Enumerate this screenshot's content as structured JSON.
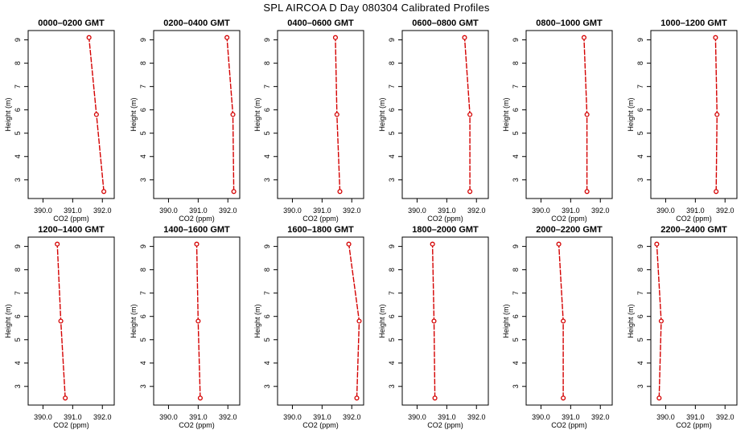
{
  "title": "SPL AIRCOA D  Day 080304  Calibrated Profiles",
  "colors": {
    "profile": "#d40000",
    "axis": "#000000"
  },
  "chart_data": [
    {
      "type": "line",
      "title": "0000–0200 GMT",
      "xlabel": "CO2 (ppm)",
      "ylabel": "Height (m)",
      "xlim": [
        389.5,
        392.4
      ],
      "ylim": [
        2.2,
        9.4
      ],
      "xticks": [
        "390.0",
        "391.0",
        "392.0"
      ],
      "yticks": [
        "3",
        "4",
        "5",
        "6",
        "7",
        "8",
        "9"
      ],
      "series": [
        {
          "x": [
            392.05,
            391.8,
            391.55
          ],
          "y": [
            2.5,
            5.8,
            9.1
          ]
        }
      ]
    },
    {
      "type": "line",
      "title": "0200–0400 GMT",
      "xlabel": "CO2 (ppm)",
      "ylabel": "Height (m)",
      "xlim": [
        389.5,
        392.4
      ],
      "ylim": [
        2.2,
        9.4
      ],
      "xticks": [
        "390.0",
        "391.0",
        "392.0"
      ],
      "yticks": [
        "3",
        "4",
        "5",
        "6",
        "7",
        "8",
        "9"
      ],
      "series": [
        {
          "x": [
            392.2,
            392.17,
            391.97
          ],
          "y": [
            2.5,
            5.8,
            9.1
          ]
        }
      ]
    },
    {
      "type": "line",
      "title": "0400–0600 GMT",
      "xlabel": "CO2 (ppm)",
      "ylabel": "Height (m)",
      "xlim": [
        389.5,
        392.4
      ],
      "ylim": [
        2.2,
        9.4
      ],
      "xticks": [
        "390.0",
        "391.0",
        "392.0"
      ],
      "yticks": [
        "3",
        "4",
        "5",
        "6",
        "7",
        "8",
        "9"
      ],
      "series": [
        {
          "x": [
            391.6,
            391.5,
            391.45
          ],
          "y": [
            2.5,
            5.8,
            9.1
          ]
        }
      ]
    },
    {
      "type": "line",
      "title": "0600–0800 GMT",
      "xlabel": "CO2 (ppm)",
      "ylabel": "Height (m)",
      "xlim": [
        389.5,
        392.4
      ],
      "ylim": [
        2.2,
        9.4
      ],
      "xticks": [
        "390.0",
        "391.0",
        "392.0"
      ],
      "yticks": [
        "3",
        "4",
        "5",
        "6",
        "7",
        "8",
        "9"
      ],
      "series": [
        {
          "x": [
            391.78,
            391.78,
            391.6
          ],
          "y": [
            2.5,
            5.8,
            9.1
          ]
        }
      ]
    },
    {
      "type": "line",
      "title": "0800–1000 GMT",
      "xlabel": "CO2 (ppm)",
      "ylabel": "Height (m)",
      "xlim": [
        389.5,
        392.4
      ],
      "ylim": [
        2.2,
        9.4
      ],
      "xticks": [
        "390.0",
        "391.0",
        "392.0"
      ],
      "yticks": [
        "3",
        "4",
        "5",
        "6",
        "7",
        "8",
        "9"
      ],
      "series": [
        {
          "x": [
            391.55,
            391.55,
            391.45
          ],
          "y": [
            2.5,
            5.8,
            9.1
          ]
        }
      ]
    },
    {
      "type": "line",
      "title": "1000–1200 GMT",
      "xlabel": "CO2 (ppm)",
      "ylabel": "Height (m)",
      "xlim": [
        389.5,
        392.4
      ],
      "ylim": [
        2.2,
        9.4
      ],
      "xticks": [
        "390.0",
        "391.0",
        "392.0"
      ],
      "yticks": [
        "3",
        "4",
        "5",
        "6",
        "7",
        "8",
        "9"
      ],
      "series": [
        {
          "x": [
            391.7,
            391.73,
            391.68
          ],
          "y": [
            2.5,
            5.8,
            9.1
          ]
        }
      ]
    },
    {
      "type": "line",
      "title": "1200–1400 GMT",
      "xlabel": "CO2 (ppm)",
      "ylabel": "Height (m)",
      "xlim": [
        389.5,
        392.4
      ],
      "ylim": [
        2.2,
        9.4
      ],
      "xticks": [
        "390.0",
        "391.0",
        "392.0"
      ],
      "yticks": [
        "3",
        "4",
        "5",
        "6",
        "7",
        "8",
        "9"
      ],
      "series": [
        {
          "x": [
            390.75,
            390.6,
            390.48
          ],
          "y": [
            2.5,
            5.8,
            9.1
          ]
        }
      ]
    },
    {
      "type": "line",
      "title": "1400–1600 GMT",
      "xlabel": "CO2 (ppm)",
      "ylabel": "Height (m)",
      "xlim": [
        389.5,
        392.4
      ],
      "ylim": [
        2.2,
        9.4
      ],
      "xticks": [
        "390.0",
        "391.0",
        "392.0"
      ],
      "yticks": [
        "3",
        "4",
        "5",
        "6",
        "7",
        "8",
        "9"
      ],
      "series": [
        {
          "x": [
            391.07,
            391.0,
            390.95
          ],
          "y": [
            2.5,
            5.8,
            9.1
          ]
        }
      ]
    },
    {
      "type": "line",
      "title": "1600–1800 GMT",
      "xlabel": "CO2 (ppm)",
      "ylabel": "Height (m)",
      "xlim": [
        389.5,
        392.4
      ],
      "ylim": [
        2.2,
        9.4
      ],
      "xticks": [
        "390.0",
        "391.0",
        "392.0"
      ],
      "yticks": [
        "3",
        "4",
        "5",
        "6",
        "7",
        "8",
        "9"
      ],
      "series": [
        {
          "x": [
            392.17,
            392.25,
            391.9
          ],
          "y": [
            2.5,
            5.8,
            9.1
          ]
        }
      ]
    },
    {
      "type": "line",
      "title": "1800–2000 GMT",
      "xlabel": "CO2 (ppm)",
      "ylabel": "Height (m)",
      "xlim": [
        389.5,
        392.4
      ],
      "ylim": [
        2.2,
        9.4
      ],
      "xticks": [
        "390.0",
        "391.0",
        "392.0"
      ],
      "yticks": [
        "3",
        "4",
        "5",
        "6",
        "7",
        "8",
        "9"
      ],
      "series": [
        {
          "x": [
            390.6,
            390.57,
            390.52
          ],
          "y": [
            2.5,
            5.8,
            9.1
          ]
        }
      ]
    },
    {
      "type": "line",
      "title": "2000–2200 GMT",
      "xlabel": "CO2 (ppm)",
      "ylabel": "Height (m)",
      "xlim": [
        389.5,
        392.4
      ],
      "ylim": [
        2.2,
        9.4
      ],
      "xticks": [
        "390.0",
        "391.0",
        "392.0"
      ],
      "yticks": [
        "3",
        "4",
        "5",
        "6",
        "7",
        "8",
        "9"
      ],
      "series": [
        {
          "x": [
            390.75,
            390.75,
            390.6
          ],
          "y": [
            2.5,
            5.8,
            9.1
          ]
        }
      ]
    },
    {
      "type": "line",
      "title": "2200–2400 GMT",
      "xlabel": "CO2 (ppm)",
      "ylabel": "Height (m)",
      "xlim": [
        389.5,
        392.4
      ],
      "ylim": [
        2.2,
        9.4
      ],
      "xticks": [
        "390.0",
        "391.0",
        "392.0"
      ],
      "yticks": [
        "3",
        "4",
        "5",
        "6",
        "7",
        "8",
        "9"
      ],
      "series": [
        {
          "x": [
            389.78,
            389.85,
            389.7
          ],
          "y": [
            2.5,
            5.8,
            9.1
          ]
        }
      ]
    }
  ]
}
